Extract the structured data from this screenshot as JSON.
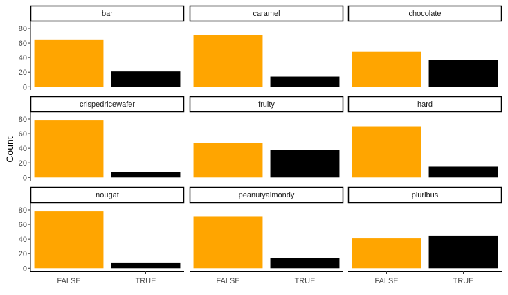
{
  "chart_data": {
    "type": "bar",
    "ylabel": "Count",
    "xlabel": "",
    "categories": [
      "FALSE",
      "TRUE"
    ],
    "ylim": [
      0,
      80
    ],
    "yticks": [
      0,
      20,
      40,
      60,
      80
    ],
    "colors": {
      "FALSE": "#FFA500",
      "TRUE": "#000000"
    },
    "grid": false,
    "facets": [
      {
        "name": "bar",
        "values": [
          64,
          21
        ]
      },
      {
        "name": "caramel",
        "values": [
          71,
          14
        ]
      },
      {
        "name": "chocolate",
        "values": [
          48,
          37
        ]
      },
      {
        "name": "crispedricewafer",
        "values": [
          78,
          7
        ]
      },
      {
        "name": "fruity",
        "values": [
          47,
          38
        ]
      },
      {
        "name": "hard",
        "values": [
          70,
          15
        ]
      },
      {
        "name": "nougat",
        "values": [
          78,
          7
        ]
      },
      {
        "name": "peanutyalmondy",
        "values": [
          71,
          14
        ]
      },
      {
        "name": "pluribus",
        "values": [
          41,
          44
        ]
      }
    ]
  }
}
